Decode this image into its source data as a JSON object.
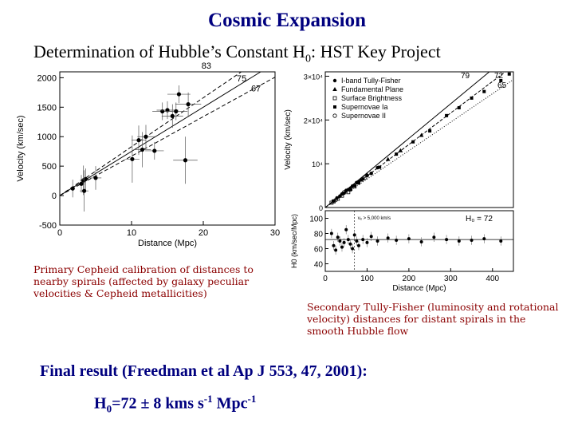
{
  "slide": {
    "title": "Cosmic Expansion",
    "subtitle_main": "Determination of Hubble’s Constant H",
    "subtitle_sub": "0",
    "subtitle_tail": ": HST Key Project",
    "caption_left": "Primary Cepheid calibration of distances to nearby spirals (affected by galaxy peculiar velocities & Cepheid metallicities)",
    "caption_right": "Secondary Tully-Fisher (luminosity and rotational velocity) distances for distant spirals in the smooth Hubble flow",
    "final_result": "Final result (Freedman et al Ap J 553, 47, 2001):",
    "result_h": "H",
    "result_sub": "0",
    "result_value": "=72 ± 8 kms s",
    "result_sup1": "-1",
    "result_unit": " Mpc",
    "result_sup2": "-1"
  },
  "colors": {
    "title": "#00007f",
    "caption": "#8b0000"
  },
  "chart_data": [
    {
      "type": "scatter",
      "title": "",
      "xlabel": "Distance (Mpc)",
      "ylabel": "Velocity (km/sec)",
      "xlim": [
        0,
        30
      ],
      "ylim": [
        -500,
        2100
      ],
      "xticks": [
        "0",
        "10",
        "20",
        "30"
      ],
      "yticks": [
        "-500",
        "0",
        "500",
        "1000",
        "1500",
        "2000"
      ],
      "xtick_values": [
        0,
        10,
        20,
        30
      ],
      "ytick_values": [
        -500,
        0,
        500,
        1000,
        1500,
        2000
      ],
      "lines": [
        {
          "label": "83",
          "slope": 83
        },
        {
          "label": "75",
          "slope": 75
        },
        {
          "label": "67",
          "slope": 67
        }
      ],
      "points": [
        {
          "x": 1.8,
          "y": 120,
          "ex": 0.3,
          "ey": 150
        },
        {
          "x": 3.0,
          "y": 200,
          "ex": 0.5,
          "ey": 150
        },
        {
          "x": 3.3,
          "y": 260,
          "ex": 0.5,
          "ey": 250
        },
        {
          "x": 3.6,
          "y": 280,
          "ex": 0.5,
          "ey": 180
        },
        {
          "x": 3.4,
          "y": 80,
          "ex": 0.6,
          "ey": 350
        },
        {
          "x": 5.0,
          "y": 300,
          "ex": 0.8,
          "ey": 200
        },
        {
          "x": 10.1,
          "y": 620,
          "ex": 1.0,
          "ey": 400
        },
        {
          "x": 11.0,
          "y": 940,
          "ex": 1.0,
          "ey": 250
        },
        {
          "x": 11.5,
          "y": 780,
          "ex": 1.2,
          "ey": 300
        },
        {
          "x": 12.0,
          "y": 1000,
          "ex": 1.2,
          "ey": 200
        },
        {
          "x": 13.2,
          "y": 760,
          "ex": 1.3,
          "ey": 150
        },
        {
          "x": 14.3,
          "y": 1430,
          "ex": 1.4,
          "ey": 150
        },
        {
          "x": 15.0,
          "y": 1450,
          "ex": 1.5,
          "ey": 150
        },
        {
          "x": 15.7,
          "y": 1350,
          "ex": 1.5,
          "ey": 200
        },
        {
          "x": 16.2,
          "y": 1430,
          "ex": 1.6,
          "ey": 150
        },
        {
          "x": 16.6,
          "y": 1720,
          "ex": 1.6,
          "ey": 150
        },
        {
          "x": 17.5,
          "y": 600,
          "ex": 1.7,
          "ey": 400
        },
        {
          "x": 17.9,
          "y": 1550,
          "ex": 1.8,
          "ey": 200
        }
      ]
    },
    {
      "type": "scatter",
      "title": "",
      "xlabel": "",
      "ylabel": "Velocity (km/sec)",
      "xlim": [
        0,
        450
      ],
      "ylim": [
        0,
        31000
      ],
      "xticks": [],
      "yticks": [
        "0",
        "10⁴",
        "2×10⁴",
        "3×10⁴"
      ],
      "ytick_values": [
        0,
        10000,
        20000,
        30000
      ],
      "legend_position": "top-left",
      "legend": [
        "I-band Tully-Fisher",
        "Fundamental Plane",
        "Surface Brightness",
        "Supernovae Ia",
        "Supernovae II"
      ],
      "lines": [
        {
          "label": "79",
          "slope": 79
        },
        {
          "label": "72",
          "slope": 72
        },
        {
          "label": "65",
          "slope": 65
        }
      ],
      "series": [
        {
          "name": "I-band Tully-Fisher",
          "points": [
            [
              20,
              1500
            ],
            [
              28,
              2200
            ],
            [
              35,
              2600
            ],
            [
              40,
              3100
            ],
            [
              45,
              3300
            ],
            [
              50,
              3900
            ],
            [
              55,
              4100
            ],
            [
              60,
              4400
            ],
            [
              65,
              4900
            ],
            [
              70,
              5000
            ],
            [
              75,
              5700
            ],
            [
              80,
              5900
            ],
            [
              90,
              6500
            ],
            [
              100,
              7300
            ],
            [
              110,
              7800
            ],
            [
              125,
              9100
            ]
          ]
        },
        {
          "name": "Fundamental Plane",
          "points": [
            [
              60,
              4200
            ],
            [
              85,
              6300
            ],
            [
              100,
              7500
            ],
            [
              150,
              11000
            ],
            [
              180,
              13000
            ],
            [
              230,
              16500
            ]
          ]
        },
        {
          "name": "Surface Brightness",
          "points": [
            [
              15,
              1100
            ],
            [
              20,
              1400
            ],
            [
              30,
              2000
            ],
            [
              40,
              2700
            ],
            [
              55,
              3500
            ],
            [
              70,
              4800
            ]
          ]
        },
        {
          "name": "Supernovae Ia",
          "points": [
            [
              80,
              5600
            ],
            [
              130,
              9200
            ],
            [
              170,
              12200
            ],
            [
              210,
              15000
            ],
            [
              250,
              17500
            ],
            [
              290,
              21000
            ],
            [
              320,
              22800
            ],
            [
              350,
              25000
            ],
            [
              380,
              26500
            ],
            [
              420,
              29000
            ],
            [
              440,
              30500
            ]
          ]
        },
        {
          "name": "Supernovae II",
          "points": [
            [
              25,
              1700
            ],
            [
              45,
              3500
            ],
            [
              60,
              4100
            ],
            [
              95,
              6800
            ]
          ]
        }
      ]
    },
    {
      "type": "scatter",
      "title": "",
      "xlabel": "Distance (Mpc)",
      "ylabel": "H0 (km/sec/Mpc)",
      "xlim": [
        0,
        450
      ],
      "ylim": [
        30,
        110
      ],
      "xticks": [
        "0",
        "100",
        "200",
        "300",
        "400"
      ],
      "xtick_values": [
        0,
        100,
        200,
        300,
        400
      ],
      "yticks": [
        "40",
        "60",
        "80",
        "100"
      ],
      "ytick_values": [
        40,
        60,
        80,
        100
      ],
      "annotations": [
        "H₀ = 72",
        "vₑ > 5,000 km/s"
      ],
      "reference_line": 72,
      "points": [
        [
          15,
          80
        ],
        [
          20,
          64
        ],
        [
          25,
          58
        ],
        [
          30,
          75
        ],
        [
          35,
          70
        ],
        [
          40,
          62
        ],
        [
          45,
          68
        ],
        [
          50,
          85
        ],
        [
          55,
          72
        ],
        [
          60,
          66
        ],
        [
          65,
          60
        ],
        [
          70,
          78
        ],
        [
          75,
          70
        ],
        [
          80,
          64
        ],
        [
          90,
          72
        ],
        [
          100,
          68
        ],
        [
          110,
          76
        ],
        [
          125,
          70
        ],
        [
          150,
          74
        ],
        [
          170,
          71
        ],
        [
          200,
          73
        ],
        [
          230,
          69
        ],
        [
          260,
          75
        ],
        [
          290,
          72
        ],
        [
          320,
          70
        ],
        [
          350,
          71
        ],
        [
          380,
          73
        ],
        [
          420,
          70
        ]
      ]
    }
  ]
}
